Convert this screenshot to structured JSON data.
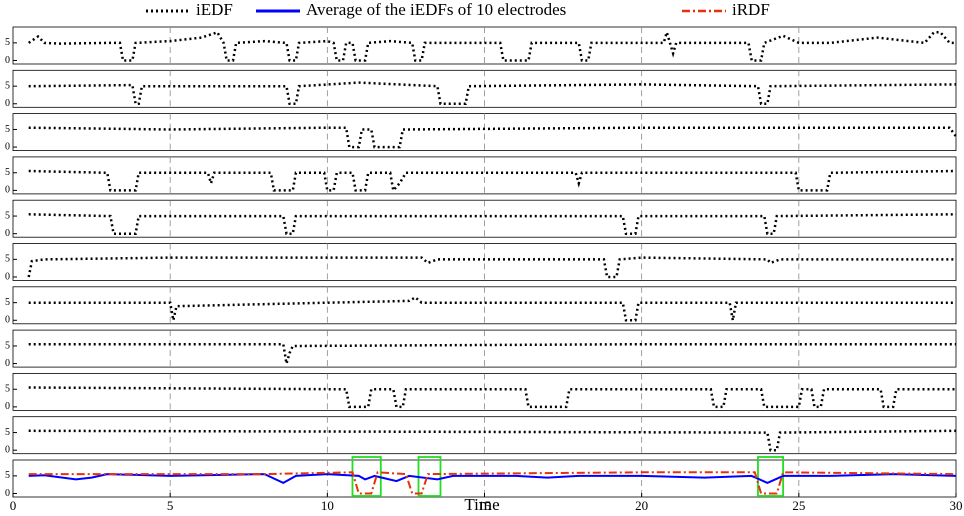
{
  "chart_data": [
    {
      "type": "line",
      "ylim": [
        -1,
        9.5
      ],
      "yticks": [
        0,
        5
      ],
      "series": [
        {
          "name": "iEDF",
          "color": "#000000",
          "style": "dotted",
          "x": [
            0.5,
            0.8,
            1,
            1.5,
            3,
            3.4,
            3.5,
            3.8,
            3.9,
            5,
            6,
            6.5,
            6.7,
            6.8,
            7.0,
            7.1,
            8,
            8.7,
            8.8,
            9.0,
            9.1,
            10,
            10.2,
            10.3,
            10.5,
            10.6,
            10.8,
            10.9,
            11.2,
            11.3,
            12,
            12.7,
            12.8,
            13.0,
            13.1,
            14,
            15.5,
            15.6,
            16.4,
            16.5,
            17,
            18.0,
            18.1,
            18.3,
            18.4,
            20,
            20.7,
            20.8,
            21.0,
            21.1,
            23,
            23.4,
            23.5,
            23.8,
            23.9,
            24.5,
            25,
            26,
            27.5,
            29,
            29.3,
            29.5,
            29.8,
            30
          ],
          "values": [
            5,
            6.8,
            5,
            4.8,
            5,
            5,
            0,
            0,
            5,
            5.5,
            6.5,
            8,
            5,
            0,
            0,
            5,
            5.5,
            5,
            0,
            0,
            5,
            5.5,
            5,
            0,
            0,
            5,
            5,
            0,
            0,
            5,
            5.5,
            5,
            0,
            0,
            5,
            5,
            5,
            0,
            0,
            5,
            5,
            5,
            0,
            0,
            5,
            5,
            5,
            8,
            2,
            5,
            5,
            5,
            0,
            0,
            5,
            7,
            5,
            5,
            6.5,
            5,
            8,
            8,
            5,
            5
          ]
        }
      ]
    },
    {
      "type": "line",
      "ylim": [
        -1,
        9.5
      ],
      "yticks": [
        0,
        5
      ],
      "series": [
        {
          "color": "#000000",
          "style": "dotted",
          "x": [
            0.5,
            3.8,
            3.9,
            4.0,
            4.1,
            8.7,
            8.8,
            9.0,
            9.1,
            11,
            13.5,
            13.6,
            14.4,
            14.5,
            20,
            23.7,
            23.8,
            24.0,
            24.1,
            30
          ],
          "values": [
            5,
            5.3,
            0,
            0,
            5,
            5,
            0,
            0,
            5,
            6,
            5,
            0,
            0,
            5,
            5.5,
            5,
            0,
            0,
            5,
            5.5
          ]
        }
      ]
    },
    {
      "type": "line",
      "ylim": [
        -1,
        9.5
      ],
      "yticks": [
        0,
        5
      ],
      "series": [
        {
          "color": "#000000",
          "style": "dotted",
          "x": [
            0.5,
            5,
            10,
            10.6,
            10.7,
            11.0,
            11.1,
            11.4,
            11.5,
            12.3,
            12.4,
            20,
            25,
            29.8,
            30
          ],
          "values": [
            5.5,
            5,
            5.5,
            5.5,
            0,
            0,
            5,
            5,
            0,
            0,
            5,
            5.5,
            5.5,
            5.5,
            3
          ]
        }
      ]
    },
    {
      "type": "line",
      "ylim": [
        -1,
        9.5
      ],
      "yticks": [
        0,
        5
      ],
      "series": [
        {
          "color": "#000000",
          "style": "dotted",
          "x": [
            0.5,
            3.0,
            3.1,
            3.9,
            4.0,
            6.2,
            6.3,
            6.4,
            8.2,
            8.3,
            8.9,
            9.0,
            9.9,
            10.0,
            10.2,
            10.3,
            10.8,
            10.9,
            11.2,
            11.3,
            12.0,
            12.1,
            12.3,
            12.5,
            17.9,
            18.0,
            18.1,
            24.9,
            25.0,
            25.9,
            26.0,
            30
          ],
          "values": [
            5.5,
            5,
            0,
            0,
            5,
            5,
            2,
            5,
            5,
            0,
            0,
            5,
            5,
            0,
            0,
            5,
            5,
            0,
            0,
            5,
            5,
            0,
            2,
            5,
            5,
            2,
            5,
            5,
            0,
            0,
            5,
            5.5
          ]
        }
      ]
    },
    {
      "type": "line",
      "ylim": [
        -1,
        9.5
      ],
      "yticks": [
        0,
        5
      ],
      "series": [
        {
          "color": "#000000",
          "style": "dotted",
          "x": [
            0.5,
            3.1,
            3.2,
            3.9,
            4.0,
            8.6,
            8.7,
            8.9,
            9.0,
            19.4,
            19.5,
            19.8,
            19.9,
            23.9,
            24.0,
            24.2,
            24.3,
            30
          ],
          "values": [
            5.5,
            5,
            0,
            0,
            5,
            5,
            0,
            0,
            5,
            5,
            0,
            0,
            5,
            5,
            0,
            0,
            5,
            5.5
          ]
        }
      ]
    },
    {
      "type": "line",
      "ylim": [
        -1,
        9.5
      ],
      "yticks": [
        0,
        5
      ],
      "series": [
        {
          "color": "#000000",
          "style": "dotted",
          "x": [
            0.5,
            0.6,
            1,
            5,
            10,
            13,
            13.2,
            13.5,
            18.8,
            18.9,
            19.2,
            19.3,
            20,
            24,
            24.1,
            24.4,
            30
          ],
          "values": [
            0,
            4.5,
            5,
            5.5,
            5.5,
            5.5,
            4,
            5,
            5,
            0,
            0,
            5,
            5.5,
            5,
            4,
            5,
            5
          ]
        }
      ]
    },
    {
      "type": "line",
      "ylim": [
        -1,
        9.5
      ],
      "yticks": [
        0,
        5
      ],
      "series": [
        {
          "color": "#000000",
          "style": "dotted",
          "x": [
            0.5,
            5,
            5.1,
            5.2,
            10,
            12.6,
            12.8,
            13,
            19.4,
            19.5,
            19.8,
            19.9,
            22.8,
            22.9,
            23,
            30
          ],
          "values": [
            5,
            5,
            0,
            4,
            5,
            5.5,
            6.5,
            5,
            5,
            0,
            0,
            5,
            5,
            0,
            5,
            5
          ]
        }
      ]
    },
    {
      "type": "line",
      "ylim": [
        -1,
        9.5
      ],
      "yticks": [
        0,
        5
      ],
      "series": [
        {
          "color": "#000000",
          "style": "dotted",
          "x": [
            0.5,
            8.6,
            8.7,
            8.8,
            8.9,
            20,
            30
          ],
          "values": [
            5.5,
            5.5,
            0,
            3,
            5,
            5.5,
            5.5
          ]
        }
      ]
    },
    {
      "type": "line",
      "ylim": [
        -1,
        9.5
      ],
      "yticks": [
        0,
        5
      ],
      "series": [
        {
          "color": "#000000",
          "style": "dotted",
          "x": [
            0.5,
            10.6,
            10.7,
            11.3,
            11.4,
            12.1,
            12.2,
            12.4,
            12.5,
            16.3,
            16.4,
            17.6,
            17.7,
            22.2,
            22.3,
            22.6,
            22.7,
            23.8,
            23.9,
            25.0,
            25.1,
            25.4,
            25.5,
            25.7,
            25.8,
            27.6,
            27.7,
            28.0,
            28.1,
            30
          ],
          "values": [
            5.5,
            5,
            0,
            0,
            5,
            5,
            0,
            0,
            5,
            5,
            0,
            0,
            5,
            5,
            0,
            0,
            5,
            5,
            0,
            0,
            5,
            5,
            0,
            0,
            5,
            5,
            0,
            0,
            5,
            5
          ]
        }
      ]
    },
    {
      "type": "line",
      "ylim": [
        -1,
        9.5
      ],
      "yticks": [
        0,
        5
      ],
      "series": [
        {
          "color": "#000000",
          "style": "dotted",
          "x": [
            0.5,
            24,
            24.1,
            24.3,
            24.4,
            30
          ],
          "values": [
            5.5,
            5,
            0,
            0,
            5,
            5.5
          ]
        }
      ]
    },
    {
      "type": "line",
      "xlabel": "Time",
      "xlim": [
        0,
        30
      ],
      "xticks": [
        0,
        5,
        10,
        15,
        20,
        25,
        30
      ],
      "ylim": [
        -1,
        9.5
      ],
      "yticks": [
        0,
        5
      ],
      "highlights": [
        [
          10.8,
          11.7
        ],
        [
          12.9,
          13.6
        ],
        [
          23.7,
          24.5
        ]
      ],
      "series": [
        {
          "name": "Average of the iEDFs of 10 electrodes",
          "color": "#0000ff",
          "style": "solid",
          "x": [
            0.5,
            1,
            2,
            2.5,
            3,
            5,
            8,
            8.6,
            9,
            10,
            11,
            11.2,
            11.5,
            12.2,
            12.6,
            13.5,
            14,
            16,
            17,
            18,
            20,
            22,
            23.5,
            24,
            24.5,
            26,
            28,
            30
          ],
          "values": [
            5,
            5.2,
            4,
            4.5,
            5.5,
            5,
            5.5,
            3,
            5,
            5.5,
            5,
            4,
            5,
            3.5,
            5,
            4,
            5,
            5,
            4.5,
            5,
            5,
            4.5,
            5,
            3,
            5,
            5,
            5.5,
            5
          ]
        },
        {
          "name": "iRDF",
          "color": "#e8300a",
          "style": "dashdot",
          "x": [
            0.5,
            5,
            8,
            10.8,
            11.0,
            11.4,
            11.6,
            12.5,
            12.7,
            13.0,
            13.2,
            20,
            23.6,
            23.8,
            24.3,
            24.5,
            30
          ],
          "values": [
            5.5,
            5.5,
            5.5,
            6,
            0,
            0,
            6,
            5.5,
            0,
            0,
            5.5,
            6,
            6,
            0,
            0,
            6,
            5.5
          ]
        }
      ]
    }
  ]
}
